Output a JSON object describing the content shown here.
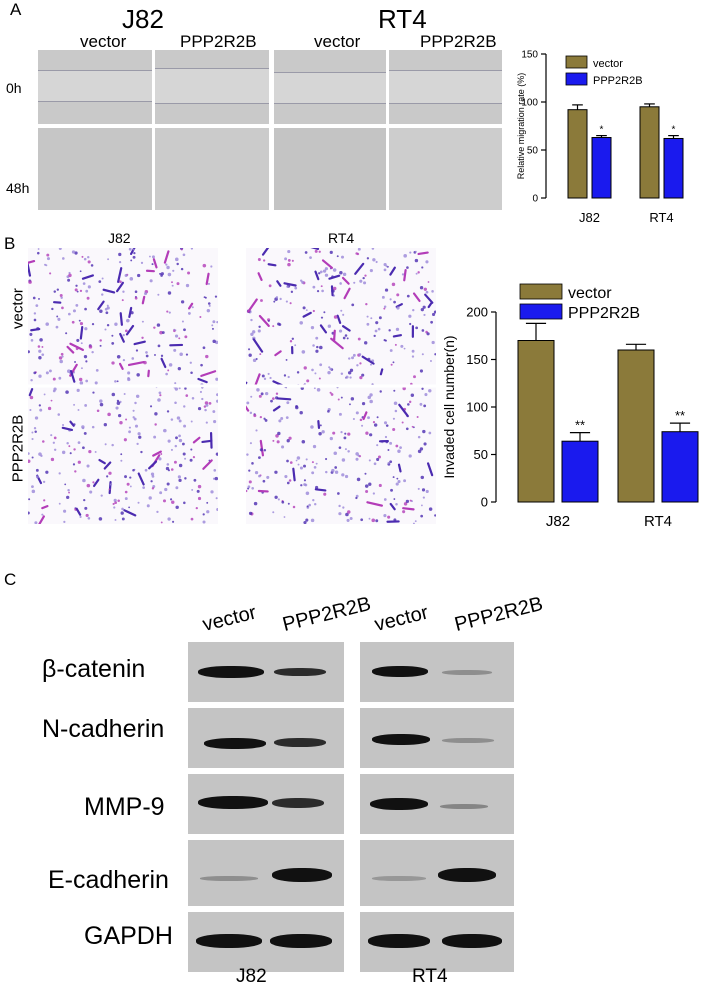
{
  "panel_a": {
    "label": "A",
    "cell_lines": [
      "J82",
      "RT4"
    ],
    "conditions": [
      "vector",
      "PPP2R2B"
    ],
    "timepoints": [
      "0h",
      "48h"
    ]
  },
  "panel_b": {
    "label": "B",
    "cell_lines": [
      "J82",
      "RT4"
    ],
    "row_labels": [
      "vector",
      "PPP2R2B"
    ]
  },
  "panel_c": {
    "label": "C",
    "column_labels": [
      "vector",
      "PPP2R2B",
      "vector",
      "PPP2R2B"
    ],
    "proteins": [
      "β-catenin",
      "N-cadherin",
      "MMP-9",
      "E-cadherin",
      "GAPDH"
    ],
    "cell_lines": [
      "J82",
      "RT4"
    ]
  },
  "colors": {
    "vector": "#8b7a3a",
    "PPP2R2B": "#1a1aee"
  },
  "chart_data": [
    {
      "type": "bar",
      "categories": [
        "J82",
        "RT4"
      ],
      "series": [
        {
          "name": "vector",
          "values": [
            92,
            95
          ],
          "errors": [
            5,
            3
          ]
        },
        {
          "name": "PPP2R2B",
          "values": [
            63,
            62
          ],
          "errors": [
            2,
            3
          ]
        }
      ],
      "significance": [
        "*",
        "*"
      ],
      "ylabel": "Relative migration rate (%)",
      "ylim": [
        0,
        150
      ],
      "yticks": [
        0,
        50,
        100,
        150
      ],
      "legend": "top-right"
    },
    {
      "type": "bar",
      "categories": [
        "J82",
        "RT4"
      ],
      "series": [
        {
          "name": "vector",
          "values": [
            170,
            160
          ],
          "errors": [
            18,
            6
          ]
        },
        {
          "name": "PPP2R2B",
          "values": [
            64,
            74
          ],
          "errors": [
            9,
            9
          ]
        }
      ],
      "significance": [
        "**",
        "**"
      ],
      "ylabel": "Invaded cell number(n)",
      "ylim": [
        0,
        200
      ],
      "yticks": [
        0,
        50,
        100,
        150,
        200
      ],
      "legend": "top"
    }
  ]
}
